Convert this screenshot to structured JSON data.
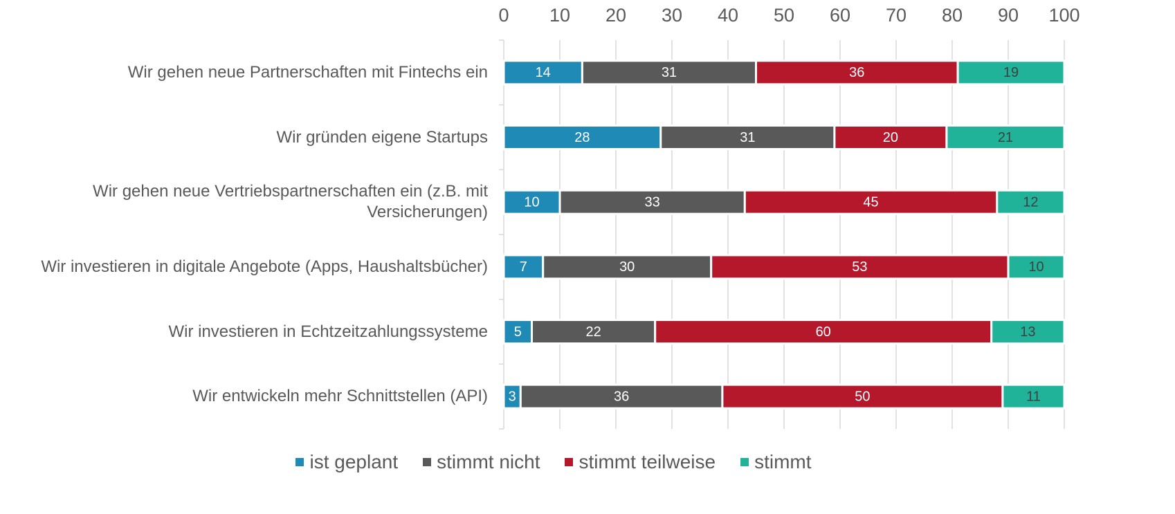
{
  "chart_data": {
    "type": "stacked_barh",
    "categories": [
      "Wir gehen neue Partnerschaften mit Fintechs ein",
      "Wir gründen eigene Startups",
      "Wir gehen neue Vertriebspartnerschaften ein (z.B. mit Versicherungen)",
      "Wir investieren in digitale Angebote (Apps, Haushaltsbücher)",
      "Wir investieren in Echtzeitzahlungssysteme",
      "Wir entwickeln mehr Schnittstellen (API)"
    ],
    "series": [
      {
        "name": "ist geplant",
        "color": "#1f8ab5",
        "label_color": "#ffffff",
        "values": [
          14,
          28,
          10,
          7,
          5,
          3
        ]
      },
      {
        "name": "stimmt nicht",
        "color": "#595959",
        "label_color": "#ffffff",
        "values": [
          31,
          31,
          33,
          30,
          22,
          36
        ]
      },
      {
        "name": "stimmt teilweise",
        "color": "#b5172b",
        "label_color": "#ffffff",
        "values": [
          36,
          20,
          45,
          53,
          60,
          50
        ]
      },
      {
        "name": "stimmt",
        "color": "#20b39a",
        "label_color": "#404040",
        "values": [
          19,
          21,
          12,
          10,
          13,
          11
        ]
      }
    ],
    "xlim": [
      0,
      100
    ],
    "xticks": [
      0,
      10,
      20,
      30,
      40,
      50,
      60,
      70,
      80,
      90,
      100
    ],
    "grid": true,
    "legend": "bottom"
  }
}
